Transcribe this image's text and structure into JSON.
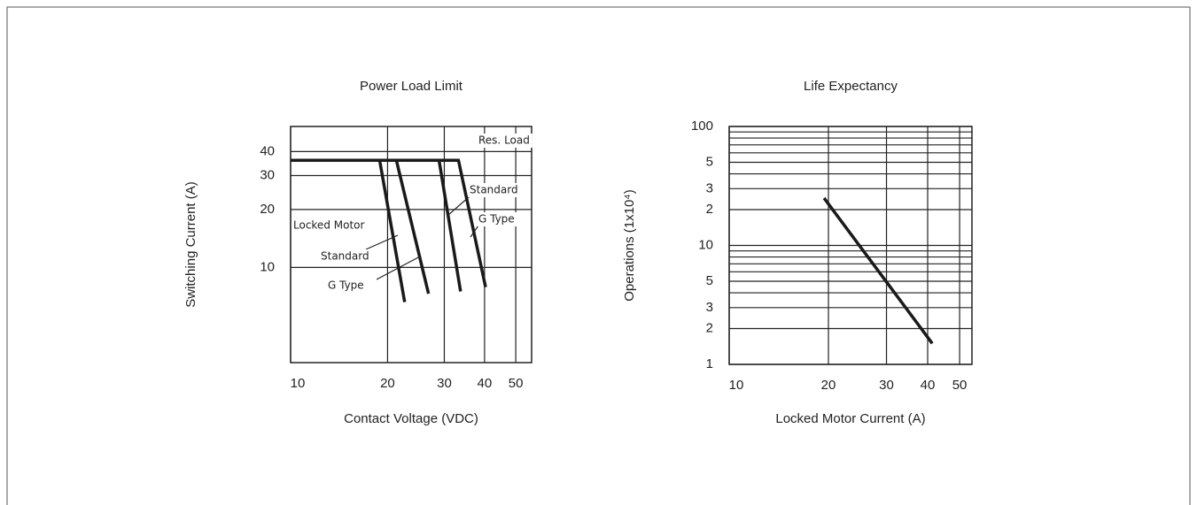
{
  "chart_data": [
    {
      "type": "line",
      "title": "Power Load Limit",
      "xlabel": "Contact Voltage (VDC)",
      "ylabel": "Switching Current (A)",
      "xscale": "log",
      "yscale": "log",
      "grid": true,
      "color": "#1a1a1a",
      "xlim": [
        10,
        56
      ],
      "ylim": [
        3.2,
        54
      ],
      "xticks": [
        10,
        20,
        30,
        40,
        50
      ],
      "yticks": [
        10,
        20,
        30,
        40
      ],
      "annotations": [
        "Locked Motor"
      ],
      "series": [
        {
          "name": "Res. Load",
          "x": [
            10,
            33.5
          ],
          "values": [
            36,
            36
          ]
        },
        {
          "name": "Standard",
          "x": [
            18.9,
            22.6
          ],
          "values": [
            36,
            6.6
          ]
        },
        {
          "name": "G Type",
          "x": [
            21.3,
            26.8
          ],
          "values": [
            36,
            7.3
          ]
        },
        {
          "name": "Standard",
          "x": [
            28.9,
            33.7
          ],
          "values": [
            36,
            7.5
          ]
        },
        {
          "name": "G Type",
          "x": [
            33.2,
            40.3
          ],
          "values": [
            36,
            7.9
          ]
        }
      ]
    },
    {
      "type": "line",
      "title": "Life Expectancy",
      "xlabel": "Locked Motor Current (A)",
      "ylabel": "Operations (1x10⁴)",
      "xscale": "log",
      "yscale": "log",
      "grid": true,
      "color": "#1a1a1a",
      "xlim": [
        10,
        54.5
      ],
      "ylim": [
        1,
        100
      ],
      "xticks": [
        10,
        20,
        30,
        40,
        50
      ],
      "yticks": [
        1,
        2,
        3,
        5,
        10,
        {
          "value": 20,
          "label": "2"
        },
        {
          "value": 30,
          "label": "3"
        },
        {
          "value": 50,
          "label": "5"
        },
        100
      ],
      "minor_yticks": [
        4,
        6,
        7,
        8,
        9,
        40,
        60,
        70,
        80,
        90
      ],
      "series": [
        {
          "x": [
            19.4,
            41.3
          ],
          "values": [
            25,
            1.5
          ]
        }
      ]
    }
  ]
}
